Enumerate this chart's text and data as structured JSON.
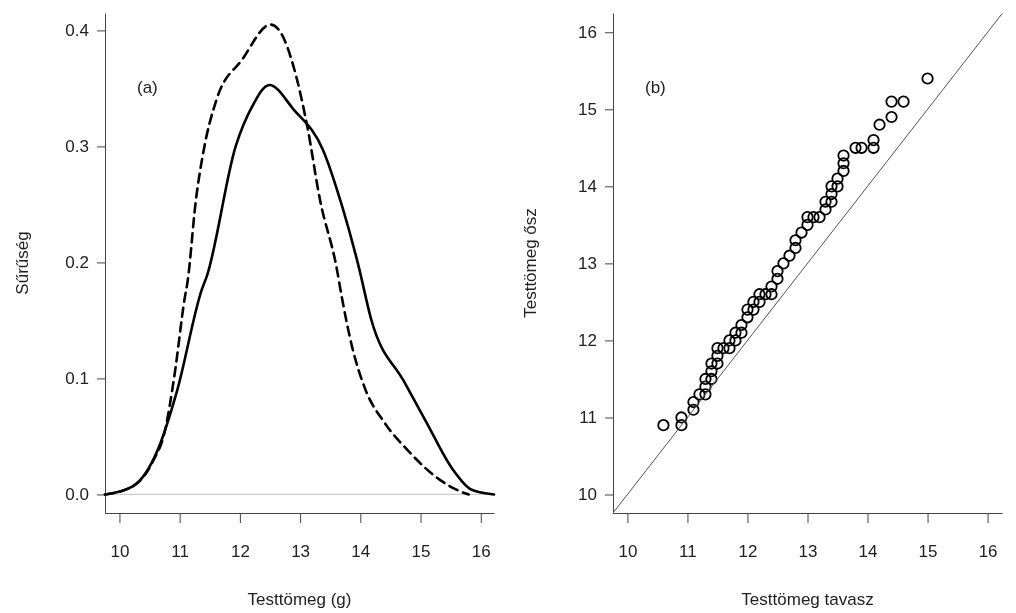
{
  "chart_data": [
    {
      "type": "line",
      "xlabel": "Testtömeg (g)",
      "ylabel": "Sűrűség",
      "annotations": [
        "(a)"
      ],
      "xlim": [
        9.76,
        16.22
      ],
      "xticks": [
        10,
        11,
        12,
        13,
        14,
        15,
        16
      ],
      "ylim": [
        -0.016,
        0.415
      ],
      "yticks": [
        {
          "value": 0,
          "label": "0.0"
        },
        0.1,
        0.2,
        0.3,
        0.4
      ],
      "grid": false,
      "ref_lines": [
        {
          "axis": "y",
          "value": 0,
          "color": "#cccccc"
        }
      ],
      "series": [
        {
          "color": "#000000",
          "line_style": "solid",
          "x": [
            9.76,
            10.22,
            10.64,
            10.96,
            11.37,
            11.45,
            11.93,
            12.2,
            12.49,
            12.89,
            13.38,
            13.7,
            13.97,
            14.18,
            14.73,
            15.1,
            15.53,
            15.85,
            16.22
          ],
          "values": [
            0,
            0.007,
            0.039,
            0.09,
            0.177,
            0.188,
            0.3,
            0.334,
            0.353,
            0.332,
            0.297,
            0.248,
            0.197,
            0.151,
            0.097,
            0.062,
            0.022,
            0.004,
            0
          ]
        },
        {
          "color": "#000000",
          "line_style": "dashed",
          "x": [
            9.76,
            10.22,
            10.55,
            10.76,
            10.92,
            11.08,
            11.13,
            11.27,
            11.4,
            11.61,
            12.04,
            12.51,
            12.68,
            12.89,
            13.12,
            13.33,
            13.6,
            13.7,
            13.86,
            14.08,
            14.4,
            14.77,
            15.31,
            15.74,
            15.8
          ],
          "values": [
            0,
            0.007,
            0.028,
            0.056,
            0.105,
            0.168,
            0.183,
            0.254,
            0.297,
            0.34,
            0.375,
            0.405,
            0.398,
            0.369,
            0.317,
            0.254,
            0.197,
            0.168,
            0.128,
            0.091,
            0.062,
            0.039,
            0.013,
            0.001,
            0
          ]
        }
      ]
    },
    {
      "type": "scatter",
      "xlabel": "Testtömeg tavasz",
      "ylabel": "Testtömeg ősz",
      "annotations": [
        "(b)"
      ],
      "xlim": [
        9.76,
        16.24
      ],
      "xticks": [
        10,
        11,
        12,
        13,
        14,
        15,
        16
      ],
      "ylim": [
        9.76,
        16.25
      ],
      "yticks": [
        10,
        11,
        12,
        13,
        14,
        15,
        16
      ],
      "grid": false,
      "series": [
        {
          "color": "#000000",
          "marker": "circle",
          "x": [
            10.6,
            10.9,
            10.9,
            11.1,
            11.1,
            11.2,
            11.3,
            11.3,
            11.3,
            11.4,
            11.4,
            11.4,
            11.5,
            11.5,
            11.5,
            11.6,
            11.7,
            11.7,
            11.8,
            11.8,
            11.9,
            11.9,
            12.0,
            12.0,
            12.1,
            12.1,
            12.2,
            12.2,
            12.3,
            12.4,
            12.4,
            12.5,
            12.5,
            12.6,
            12.7,
            12.8,
            12.8,
            12.9,
            13.0,
            13.0,
            13.1,
            13.2,
            13.3,
            13.3,
            13.4,
            13.4,
            13.4,
            13.5,
            13.5,
            13.6,
            13.6,
            13.6,
            13.8,
            13.9,
            14.1,
            14.1,
            14.2,
            14.4,
            14.4,
            14.6,
            15.0
          ],
          "values": [
            10.9,
            10.9,
            11.0,
            11.1,
            11.2,
            11.3,
            11.3,
            11.4,
            11.5,
            11.5,
            11.6,
            11.7,
            11.7,
            11.8,
            11.9,
            11.9,
            11.9,
            12.0,
            12.0,
            12.1,
            12.1,
            12.2,
            12.3,
            12.4,
            12.4,
            12.5,
            12.5,
            12.6,
            12.6,
            12.6,
            12.7,
            12.8,
            12.9,
            13.0,
            13.1,
            13.2,
            13.3,
            13.4,
            13.5,
            13.6,
            13.6,
            13.6,
            13.7,
            13.8,
            13.8,
            13.9,
            14.0,
            14.0,
            14.1,
            14.2,
            14.3,
            14.4,
            14.5,
            14.5,
            14.5,
            14.6,
            14.8,
            14.9,
            15.1,
            15.1,
            15.4
          ]
        },
        {
          "type": "line",
          "color": "#555555",
          "line_style": "solid",
          "x": [
            9.76,
            16.24
          ],
          "values": [
            9.76,
            16.24
          ]
        }
      ]
    }
  ]
}
